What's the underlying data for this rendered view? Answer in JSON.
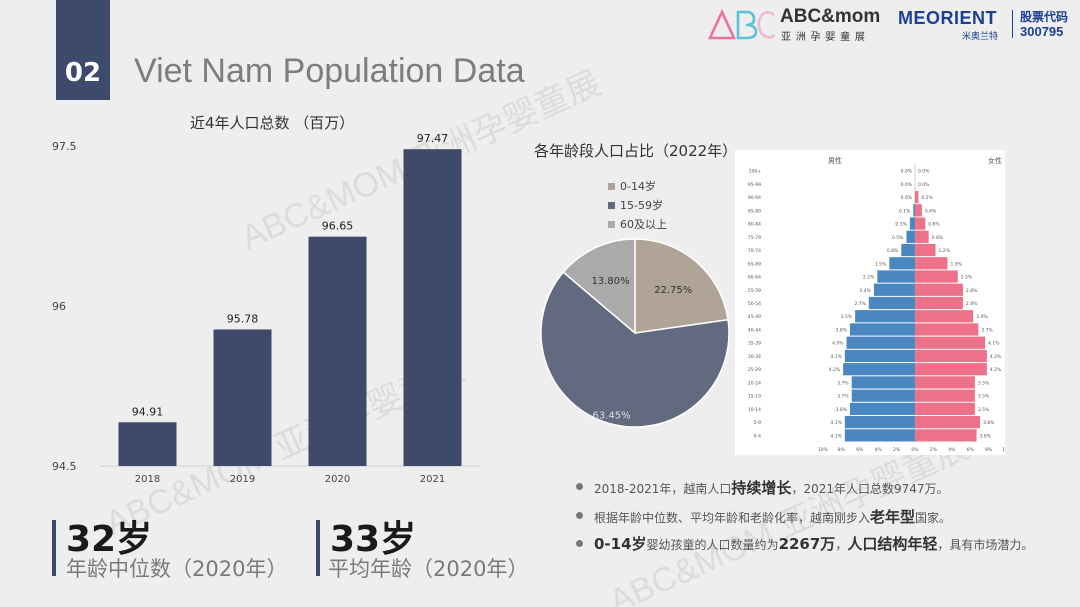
{
  "header": {
    "slide_number": "02",
    "title": "Viet Nam Population Data",
    "logo_abc_mark": "ABC",
    "logo_abc_brand": "ABC&mom",
    "logo_abc_cn": "亚 洲 孕 婴 童 展",
    "logo_meorient": "MEORIENT",
    "logo_meorient_cn": "米奥兰特",
    "stock_label": "股票代码",
    "stock_code": "300795"
  },
  "watermark": {
    "text": "ABC&MOM 亚洲孕婴童展"
  },
  "stats": [
    {
      "value": "32岁",
      "label": "年龄中位数（2020年）"
    },
    {
      "value": "33岁",
      "label": "平均年龄（2020年）"
    }
  ],
  "notes": [
    {
      "pre": "2018-2021年，越南人口",
      "bold": "持续增长",
      "post": "，2021年人口总数9747万。"
    },
    {
      "pre": "根据年龄中位数、平均年龄和老龄化率，越南刚步入",
      "bold": "老年型",
      "post": "国家。"
    },
    {
      "pre_bold": "0-14岁",
      "pre": "婴幼孩童的人口数量约为",
      "bold": "2267万",
      "mid": "，",
      "bold2": "人口结构年轻",
      "post": "，具有市场潜力。"
    }
  ],
  "colors": {
    "bar": "#3f4a6b",
    "pie_0_14": "#b0a496",
    "pie_15_59": "#626a80",
    "pie_60": "#aaaaaa",
    "male": "#4a86c0",
    "female": "#ec7189",
    "accent": "#3d4a6b"
  },
  "chart_data": [
    {
      "type": "bar",
      "title": "近4年人口总数 （百万）",
      "categories": [
        "2018",
        "2019",
        "2020",
        "2021"
      ],
      "values": [
        94.91,
        95.78,
        96.65,
        97.47
      ],
      "value_labels": [
        "94.91",
        "95.78",
        "96.65",
        "97.47"
      ],
      "yticks": [
        "97.5",
        "96",
        "94.5"
      ],
      "ylim": [
        94.5,
        97.5
      ]
    },
    {
      "type": "pie",
      "title": "各年龄段人口占比（2022年）",
      "categories": [
        "0-14岁",
        "15-59岁",
        "60及以上"
      ],
      "values": [
        22.75,
        63.45,
        13.8
      ],
      "value_labels": [
        "22.75%",
        "63.45%",
        "13.80%"
      ],
      "legend_position": "top-left"
    },
    {
      "type": "bar",
      "title": "",
      "male_header": "男性",
      "female_header": "女性",
      "categories": [
        "0-4",
        "5-9",
        "10-14",
        "15-19",
        "20-24",
        "25-29",
        "30-34",
        "35-39",
        "40-44",
        "45-49",
        "50-54",
        "55-59",
        "60-64",
        "65-69",
        "70-74",
        "75-79",
        "80-84",
        "85-89",
        "90-94",
        "95-99",
        "100+"
      ],
      "male": [
        4.1,
        4.1,
        3.8,
        3.7,
        3.7,
        4.2,
        4.1,
        4.0,
        3.8,
        3.5,
        2.7,
        2.4,
        2.2,
        1.5,
        0.8,
        0.5,
        0.3,
        0.1,
        0.0,
        0.0,
        0.0
      ],
      "female": [
        3.6,
        3.8,
        3.5,
        3.5,
        3.5,
        4.2,
        4.2,
        4.1,
        3.7,
        3.4,
        2.8,
        2.8,
        2.5,
        1.9,
        1.2,
        0.8,
        0.6,
        0.4,
        0.2,
        0.0,
        0.0
      ],
      "male_labels": [
        "4.1%",
        "4.1%",
        "3.8%",
        "3.7%",
        "3.7%",
        "4.2%",
        "4.1%",
        "4.0%",
        "3.8%",
        "3.5%",
        "2.7%",
        "2.4%",
        "2.2%",
        "1.5%",
        "0.8%",
        "0.5%",
        "0.3%",
        "0.1%",
        "0.0%",
        "0.0%",
        "0.0%"
      ],
      "female_labels": [
        "3.6%",
        "3.8%",
        "3.5%",
        "3.5%",
        "3.5%",
        "4.2%",
        "4.2%",
        "4.1%",
        "3.7%",
        "3.4%",
        "2.8%",
        "2.8%",
        "2.5%",
        "1.9%",
        "1.2%",
        "0.8%",
        "0.6%",
        "0.4%",
        "0.2%",
        "0.0%",
        "0.0%"
      ],
      "xticks": [
        "10%",
        "8%",
        "6%",
        "4%",
        "2%",
        "0%",
        "2%",
        "4%",
        "6%",
        "8%",
        "10%"
      ],
      "xlim": [
        -10,
        10
      ]
    }
  ]
}
